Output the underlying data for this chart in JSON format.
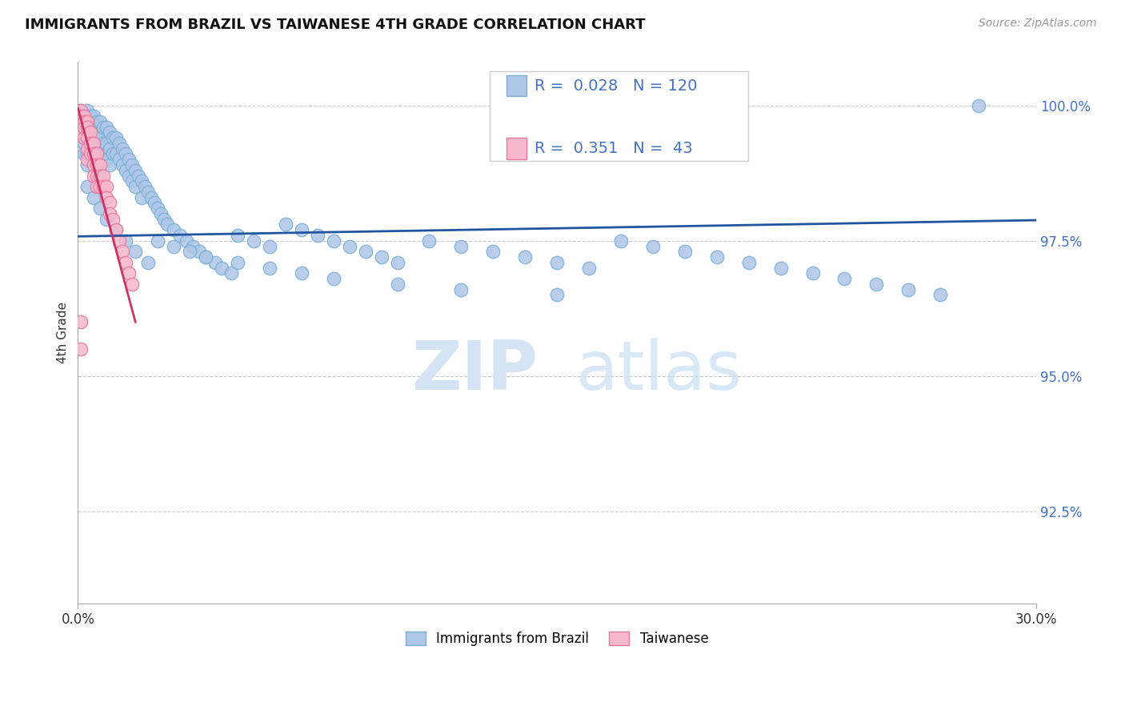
{
  "title": "IMMIGRANTS FROM BRAZIL VS TAIWANESE 4TH GRADE CORRELATION CHART",
  "source_text": "Source: ZipAtlas.com",
  "ylabel": "4th Grade",
  "legend_blue_label": "Immigrants from Brazil",
  "legend_pink_label": "Taiwanese",
  "R_blue": 0.028,
  "N_blue": 120,
  "R_pink": 0.351,
  "N_pink": 43,
  "blue_color": "#aec6e8",
  "blue_edge_color": "#7bafd4",
  "pink_color": "#f5b8cc",
  "pink_edge_color": "#e8799e",
  "blue_line_color": "#2255a0",
  "pink_line_color": "#cc3366",
  "tick_color": "#4472C4",
  "xlim": [
    0.0,
    0.3
  ],
  "ylim": [
    0.908,
    1.008
  ],
  "blue_scatter_x": [
    0.001,
    0.001,
    0.001,
    0.002,
    0.002,
    0.002,
    0.002,
    0.003,
    0.003,
    0.003,
    0.003,
    0.003,
    0.004,
    0.004,
    0.004,
    0.004,
    0.005,
    0.005,
    0.005,
    0.005,
    0.006,
    0.006,
    0.006,
    0.007,
    0.007,
    0.007,
    0.007,
    0.008,
    0.008,
    0.008,
    0.009,
    0.009,
    0.009,
    0.01,
    0.01,
    0.01,
    0.011,
    0.011,
    0.012,
    0.012,
    0.013,
    0.013,
    0.014,
    0.014,
    0.015,
    0.015,
    0.016,
    0.016,
    0.017,
    0.017,
    0.018,
    0.018,
    0.019,
    0.02,
    0.02,
    0.021,
    0.022,
    0.023,
    0.024,
    0.025,
    0.026,
    0.027,
    0.028,
    0.03,
    0.032,
    0.034,
    0.036,
    0.038,
    0.04,
    0.043,
    0.045,
    0.048,
    0.05,
    0.055,
    0.06,
    0.065,
    0.07,
    0.075,
    0.08,
    0.085,
    0.09,
    0.095,
    0.1,
    0.11,
    0.12,
    0.13,
    0.14,
    0.15,
    0.16,
    0.17,
    0.18,
    0.19,
    0.2,
    0.21,
    0.22,
    0.23,
    0.24,
    0.25,
    0.26,
    0.27,
    0.003,
    0.005,
    0.007,
    0.009,
    0.012,
    0.015,
    0.018,
    0.022,
    0.025,
    0.03,
    0.035,
    0.04,
    0.05,
    0.06,
    0.07,
    0.08,
    0.1,
    0.12,
    0.15,
    0.282
  ],
  "blue_scatter_y": [
    0.999,
    0.997,
    0.995,
    0.998,
    0.996,
    0.993,
    0.991,
    0.999,
    0.997,
    0.994,
    0.991,
    0.989,
    0.998,
    0.996,
    0.993,
    0.99,
    0.998,
    0.995,
    0.992,
    0.989,
    0.997,
    0.994,
    0.991,
    0.997,
    0.994,
    0.992,
    0.989,
    0.996,
    0.993,
    0.99,
    0.996,
    0.993,
    0.99,
    0.995,
    0.992,
    0.989,
    0.994,
    0.991,
    0.994,
    0.991,
    0.993,
    0.99,
    0.992,
    0.989,
    0.991,
    0.988,
    0.99,
    0.987,
    0.989,
    0.986,
    0.988,
    0.985,
    0.987,
    0.986,
    0.983,
    0.985,
    0.984,
    0.983,
    0.982,
    0.981,
    0.98,
    0.979,
    0.978,
    0.977,
    0.976,
    0.975,
    0.974,
    0.973,
    0.972,
    0.971,
    0.97,
    0.969,
    0.976,
    0.975,
    0.974,
    0.978,
    0.977,
    0.976,
    0.975,
    0.974,
    0.973,
    0.972,
    0.971,
    0.975,
    0.974,
    0.973,
    0.972,
    0.971,
    0.97,
    0.975,
    0.974,
    0.973,
    0.972,
    0.971,
    0.97,
    0.969,
    0.968,
    0.967,
    0.966,
    0.965,
    0.985,
    0.983,
    0.981,
    0.979,
    0.977,
    0.975,
    0.973,
    0.971,
    0.975,
    0.974,
    0.973,
    0.972,
    0.971,
    0.97,
    0.969,
    0.968,
    0.967,
    0.966,
    0.965,
    1.0
  ],
  "pink_scatter_x": [
    0.001,
    0.001,
    0.001,
    0.001,
    0.001,
    0.002,
    0.002,
    0.002,
    0.002,
    0.003,
    0.003,
    0.003,
    0.003,
    0.003,
    0.004,
    0.004,
    0.004,
    0.005,
    0.005,
    0.005,
    0.005,
    0.006,
    0.006,
    0.006,
    0.006,
    0.007,
    0.007,
    0.007,
    0.008,
    0.008,
    0.009,
    0.009,
    0.01,
    0.01,
    0.011,
    0.012,
    0.013,
    0.014,
    0.015,
    0.016,
    0.017,
    0.001,
    0.001
  ],
  "pink_scatter_y": [
    0.999,
    0.998,
    0.997,
    0.996,
    0.995,
    0.998,
    0.997,
    0.996,
    0.994,
    0.997,
    0.996,
    0.994,
    0.992,
    0.99,
    0.995,
    0.993,
    0.991,
    0.993,
    0.991,
    0.989,
    0.987,
    0.991,
    0.989,
    0.987,
    0.985,
    0.989,
    0.987,
    0.985,
    0.987,
    0.985,
    0.985,
    0.983,
    0.982,
    0.98,
    0.979,
    0.977,
    0.975,
    0.973,
    0.971,
    0.969,
    0.967,
    0.96,
    0.955
  ],
  "blue_trendline_x": [
    0.0,
    0.3
  ],
  "blue_trendline_y": [
    0.9758,
    0.9788
  ],
  "pink_trendline_x": [
    0.0,
    0.018
  ],
  "pink_trendline_y": [
    0.9995,
    0.96
  ],
  "watermark_text_zip": "ZIP",
  "watermark_text_atlas": "atlas",
  "ytick_positions": [
    1.0,
    0.975,
    0.95,
    0.925
  ],
  "ytick_labels": [
    "100.0%",
    "97.5%",
    "95.0%",
    "92.5%"
  ],
  "xtick_positions": [
    0.0,
    0.3
  ],
  "xtick_labels": [
    "0.0%",
    "30.0%"
  ]
}
